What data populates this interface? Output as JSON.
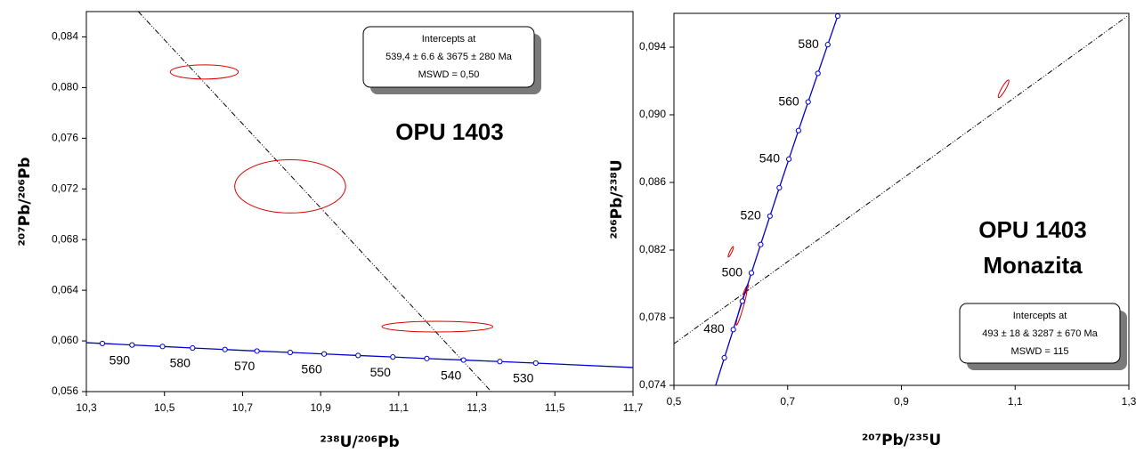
{
  "chart_data": [
    {
      "type": "scatter",
      "title": "OPU 1403",
      "x_label": "²³⁸U/²⁰⁶Pb",
      "y_label": "²⁰⁷Pb/²⁰⁶Pb",
      "xlim": [
        10.3,
        11.7
      ],
      "xticks": [
        {
          "value": 10.3,
          "label": "10,3"
        },
        {
          "value": 10.5,
          "label": "10,5"
        },
        {
          "value": 10.7,
          "label": "10,7"
        },
        {
          "value": 10.9,
          "label": "10,9"
        },
        {
          "value": 11.1,
          "label": "11,1"
        },
        {
          "value": 11.3,
          "label": "11,3"
        },
        {
          "value": 11.5,
          "label": "11,5"
        },
        {
          "value": 11.7,
          "label": "11,7"
        }
      ],
      "ylim": [
        0.056,
        0.086
      ],
      "yticks": [
        {
          "value": 0.056,
          "label": "0,056"
        },
        {
          "value": 0.06,
          "label": "0,060"
        },
        {
          "value": 0.064,
          "label": "0,064"
        },
        {
          "value": 0.068,
          "label": "0,068"
        },
        {
          "value": 0.072,
          "label": "0,072"
        },
        {
          "value": 0.076,
          "label": "0,076"
        },
        {
          "value": 0.08,
          "label": "0,080"
        },
        {
          "value": 0.084,
          "label": "0,084"
        }
      ],
      "concordia": {
        "color": "#0000cc",
        "x": [
          10.3,
          10.341,
          10.417,
          10.495,
          10.572,
          10.655,
          10.737,
          10.822,
          10.909,
          10.996,
          11.085,
          11.172,
          11.266,
          11.359,
          11.451,
          11.7
        ],
        "y": [
          0.05986,
          0.0598,
          0.05968,
          0.05956,
          0.05944,
          0.05932,
          0.0592,
          0.05909,
          0.05897,
          0.05885,
          0.05873,
          0.05861,
          0.05849,
          0.05837,
          0.05825,
          0.0579
        ]
      },
      "markers": {
        "color": "#0000cc",
        "x": [
          10.341,
          10.417,
          10.495,
          10.572,
          10.655,
          10.737,
          10.822,
          10.909,
          10.996,
          11.085,
          11.172,
          11.266,
          11.359,
          11.451
        ],
        "y": [
          0.0598,
          0.05968,
          0.05956,
          0.05944,
          0.05932,
          0.0592,
          0.05909,
          0.05897,
          0.05885,
          0.05873,
          0.05861,
          0.05849,
          0.05837,
          0.05825
        ],
        "labels": [
          null,
          590,
          null,
          580,
          null,
          570,
          null,
          560,
          null,
          550,
          null,
          540,
          null,
          530
        ]
      },
      "discordia": {
        "color": "#000000",
        "x": [
          10.433,
          11.337
        ],
        "y": [
          0.086,
          0.056
        ]
      },
      "ellipses": {
        "color": "#dd0000",
        "x": [
          10.602,
          10.822,
          11.199
        ],
        "y": [
          0.08123,
          0.0722,
          0.06113
        ],
        "x_error": [
          0.087,
          0.142,
          0.142
        ],
        "y_error": [
          0.00056,
          0.0021,
          0.00042
        ],
        "rho": [
          0,
          0,
          0
        ]
      },
      "inset": [
        "Intercepts at",
        "539,4 ± 6.6 & 3675 ± 280 Ma",
        "MSWD = 0,50"
      ]
    },
    {
      "type": "scatter",
      "title": "OPU 1403",
      "subtitle": "Monazita",
      "x_label": "²⁰⁷Pb/²³⁵U",
      "y_label": "²⁰⁶Pb/²³⁸U",
      "xlim": [
        0.5,
        1.3
      ],
      "xticks": [
        {
          "value": 0.5,
          "label": "0,5"
        },
        {
          "value": 0.7,
          "label": "0,7"
        },
        {
          "value": 0.9,
          "label": "0,9"
        },
        {
          "value": 1.1,
          "label": "1,1"
        },
        {
          "value": 1.3,
          "label": "1,3"
        }
      ],
      "ylim": [
        0.074,
        0.096
      ],
      "yticks": [
        {
          "value": 0.074,
          "label": "0,074"
        },
        {
          "value": 0.078,
          "label": "0,078"
        },
        {
          "value": 0.082,
          "label": "0,082"
        },
        {
          "value": 0.086,
          "label": "0,086"
        },
        {
          "value": 0.09,
          "label": "0,090"
        },
        {
          "value": 0.094,
          "label": "0,094"
        }
      ],
      "concordia": {
        "color": "#0000cc",
        "x": [
          0.57308,
          0.58865,
          0.60437,
          0.62025,
          0.63624,
          0.65249,
          0.66884,
          0.68531,
          0.70211,
          0.71896,
          0.73597,
          0.75315,
          0.7705,
          0.78795
        ],
        "y": [
          0.07397,
          0.07563,
          0.0773,
          0.07898,
          0.08065,
          0.08233,
          0.08401,
          0.08569,
          0.08738,
          0.08907,
          0.09076,
          0.09245,
          0.09415,
          0.09584
        ]
      },
      "markers": {
        "color": "#0000cc",
        "x": [
          0.58865,
          0.60437,
          0.62025,
          0.63624,
          0.65249,
          0.66884,
          0.68531,
          0.70211,
          0.71896,
          0.73597,
          0.75315,
          0.7705,
          0.78795
        ],
        "y": [
          0.07563,
          0.0773,
          0.07898,
          0.08065,
          0.08233,
          0.08401,
          0.08569,
          0.08738,
          0.08907,
          0.09076,
          0.09245,
          0.09415,
          0.09584
        ],
        "labels": [
          null,
          480,
          null,
          500,
          null,
          520,
          null,
          540,
          null,
          560,
          null,
          580,
          null
        ]
      },
      "discordia": {
        "color": "#000000",
        "x": [
          0.5,
          1.3
        ],
        "y": [
          0.07646,
          0.0959
        ]
      },
      "ellipses": {
        "color": "#dd0000",
        "x": [
          1.0797,
          0.6,
          0.6266,
          0.6188
        ],
        "y": [
          0.09154,
          0.0819,
          0.07965,
          0.0786
        ],
        "x_error": [
          0.0094,
          0.0047,
          0.0047,
          0.0094
        ],
        "y_error": [
          0.00052,
          0.00031,
          0.00031,
          0.00105
        ],
        "rho": [
          0.9,
          0.9,
          0.9,
          0.95
        ]
      },
      "inset": [
        "Intercepts at",
        "493 ± 18 & 3287 ± 670 Ma",
        "MSWD = 115"
      ]
    }
  ]
}
